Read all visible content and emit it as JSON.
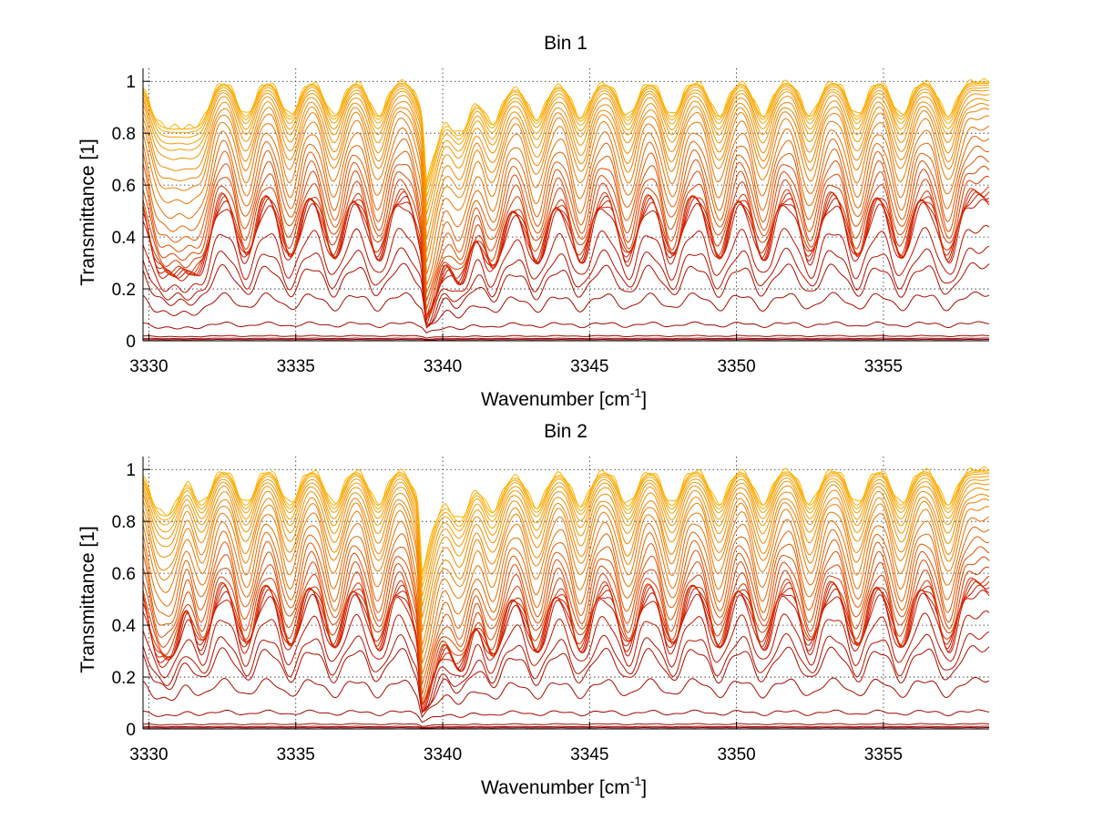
{
  "chart_data": [
    {
      "type": "line",
      "title": "Bin 1",
      "xlabel": "Wavenumber [cm",
      "xlabel_sup": "-1",
      "xlabel_tail": "]",
      "ylabel": "Transmittance [1]",
      "xlim": [
        3329.8,
        3358.6
      ],
      "ylim": [
        0,
        1.05
      ],
      "xticks": [
        3330,
        3335,
        3340,
        3345,
        3350,
        3355
      ],
      "yticks": [
        0,
        0.2,
        0.4,
        0.6,
        0.8,
        1
      ],
      "ytick_labels": [
        "0",
        "0.2",
        "0.4",
        "0.6",
        "0.8",
        "1"
      ],
      "grid": true,
      "strong_line_x": 3339.45,
      "absorption_lines_x": [
        3330.3,
        3330.8,
        3331.3,
        3331.8,
        3333.3,
        3334.8,
        3336.3,
        3337.8,
        3339.45,
        3340.6,
        3341.7,
        3343.2,
        3344.7,
        3346.3,
        3347.8,
        3349.4,
        3350.9,
        3352.5,
        3354.1,
        3355.6,
        3357.2
      ],
      "baseline_levels": [
        0.005,
        0.01,
        0.02,
        0.07,
        0.18,
        0.29,
        0.35,
        0.43,
        0.53,
        0.55,
        0.56,
        0.57,
        0.58,
        0.62,
        0.66,
        0.7,
        0.74,
        0.78,
        0.82,
        0.86,
        0.89,
        0.91,
        0.93,
        0.95,
        0.965,
        0.975,
        0.985,
        0.992,
        0.997,
        1.0
      ]
    },
    {
      "type": "line",
      "title": "Bin 2",
      "xlabel": "Wavenumber [cm",
      "xlabel_sup": "-1",
      "xlabel_tail": "]",
      "ylabel": "Transmittance [1]",
      "xlim": [
        3329.8,
        3358.6
      ],
      "ylim": [
        0,
        1.05
      ],
      "xticks": [
        3330,
        3335,
        3340,
        3345,
        3350,
        3355
      ],
      "yticks": [
        0,
        0.2,
        0.4,
        0.6,
        0.8,
        1
      ],
      "ytick_labels": [
        "0",
        "0.2",
        "0.4",
        "0.6",
        "0.8",
        "1"
      ],
      "grid": true,
      "strong_line_x": 3339.3,
      "absorption_lines_x": [
        3330.3,
        3330.8,
        3331.8,
        3333.3,
        3334.8,
        3336.3,
        3337.8,
        3339.3,
        3340.6,
        3341.7,
        3343.2,
        3344.7,
        3346.3,
        3347.8,
        3349.4,
        3350.9,
        3352.5,
        3354.1,
        3355.6,
        3357.2
      ],
      "baseline_levels": [
        0.005,
        0.01,
        0.02,
        0.07,
        0.19,
        0.31,
        0.36,
        0.44,
        0.52,
        0.54,
        0.555,
        0.565,
        0.575,
        0.61,
        0.65,
        0.69,
        0.73,
        0.77,
        0.81,
        0.85,
        0.88,
        0.9,
        0.925,
        0.945,
        0.96,
        0.972,
        0.983,
        0.99,
        0.996,
        1.0
      ]
    }
  ],
  "colors": {
    "dark_red": "#8b0000",
    "red": "#d21a00",
    "orange": "#f07a00",
    "yellow": "#ffb400",
    "grid": "#222222"
  }
}
